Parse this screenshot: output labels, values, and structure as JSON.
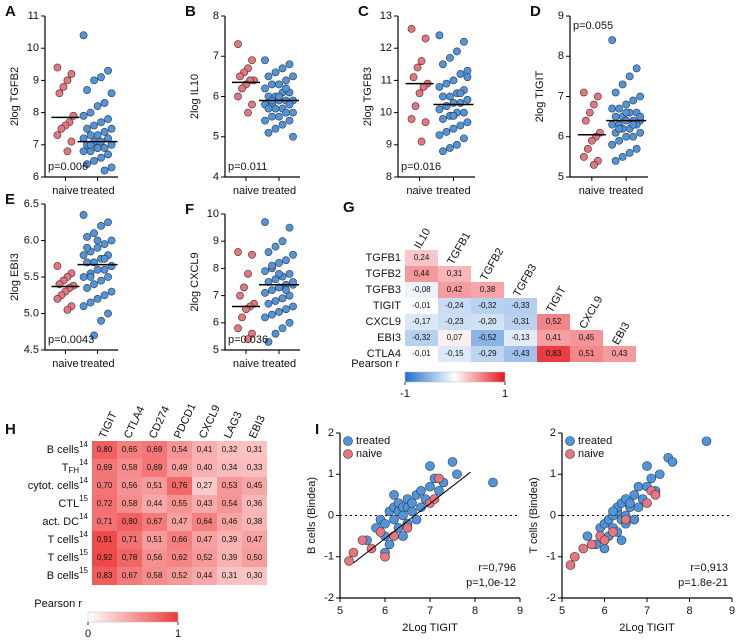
{
  "chart_data": [
    {
      "type": "dot",
      "panel": "A",
      "ylabel": "2log TGFB2",
      "annotation": "p=0.006",
      "annotation_corner": "bottom-left",
      "categories": [
        "naive",
        "treated"
      ],
      "groups": [
        {
          "color": "#e8757d",
          "median": 7.85,
          "values": [
            9.4,
            9.2,
            9.0,
            8.8,
            8.6,
            7.9,
            7.7,
            7.6,
            7.5,
            7.3,
            7.1,
            6.8
          ]
        },
        {
          "color": "#4f95de",
          "median": 7.1,
          "values": [
            10.4,
            9.3,
            9.1,
            9.0,
            8.7,
            8.6,
            8.3,
            8.2,
            8.0,
            7.9,
            7.8,
            7.7,
            7.6,
            7.5,
            7.5,
            7.4,
            7.3,
            7.3,
            7.2,
            7.2,
            7.1,
            7.1,
            7.0,
            7.0,
            6.9,
            6.9,
            6.8,
            6.8,
            6.7,
            6.6,
            6.5,
            6.4,
            6.3,
            6.2,
            6.9,
            7.0
          ]
        }
      ],
      "ylim": [
        6,
        11
      ],
      "yticks": [
        6,
        7,
        8,
        9,
        10,
        11
      ]
    },
    {
      "type": "dot",
      "panel": "B",
      "ylabel": "2log IL10",
      "annotation": "p=0.011",
      "annotation_corner": "bottom-left",
      "categories": [
        "naive",
        "treated"
      ],
      "groups": [
        {
          "color": "#e8757d",
          "median": 6.35,
          "values": [
            7.3,
            6.9,
            6.7,
            6.6,
            6.5,
            6.4,
            6.4,
            6.3,
            6.2,
            6.0,
            5.8,
            5.6
          ]
        },
        {
          "color": "#4f95de",
          "median": 5.9,
          "values": [
            6.9,
            6.8,
            6.7,
            6.6,
            6.5,
            6.5,
            6.4,
            6.3,
            6.3,
            6.2,
            6.1,
            6.1,
            6.0,
            6.0,
            5.9,
            5.9,
            5.9,
            5.8,
            5.8,
            5.8,
            5.7,
            5.7,
            5.7,
            5.6,
            5.6,
            5.5,
            5.5,
            5.4,
            5.4,
            5.3,
            5.2,
            5.1,
            5.0,
            6.2,
            6.0,
            5.9
          ]
        }
      ],
      "ylim": [
        4,
        8
      ],
      "yticks": [
        4,
        5,
        6,
        7,
        8
      ]
    },
    {
      "type": "dot",
      "panel": "C",
      "ylabel": "2log TGFB3",
      "annotation": "p=0.016",
      "annotation_corner": "bottom-left",
      "categories": [
        "naive",
        "treated"
      ],
      "groups": [
        {
          "color": "#e8757d",
          "median": 10.9,
          "values": [
            12.6,
            12.3,
            11.6,
            11.4,
            11.1,
            10.9,
            10.8,
            10.6,
            10.2,
            9.8,
            9.7,
            9.1
          ]
        },
        {
          "color": "#4f95de",
          "median": 10.25,
          "values": [
            12.4,
            12.2,
            11.9,
            11.7,
            11.5,
            11.3,
            11.2,
            11.0,
            10.9,
            10.8,
            10.7,
            10.6,
            10.5,
            10.5,
            10.4,
            10.3,
            10.3,
            10.2,
            10.1,
            10.0,
            10.0,
            9.9,
            9.8,
            9.7,
            9.6,
            9.5,
            9.4,
            9.3,
            9.2,
            9.0,
            8.9,
            8.8,
            11.1,
            10.6,
            9.9,
            10.2
          ]
        }
      ],
      "ylim": [
        8,
        13
      ],
      "yticks": [
        8,
        9,
        10,
        11,
        12,
        13
      ]
    },
    {
      "type": "dot",
      "panel": "D",
      "ylabel": "2log TIGIT",
      "annotation": "p=0.055",
      "annotation_corner": "top-left",
      "categories": [
        "naive",
        "treated"
      ],
      "groups": [
        {
          "color": "#e8757d",
          "median": 6.05,
          "values": [
            7.1,
            7.0,
            6.8,
            6.6,
            6.4,
            6.1,
            6.0,
            5.9,
            5.7,
            5.5,
            5.4,
            5.3
          ]
        },
        {
          "color": "#4f95de",
          "median": 6.4,
          "values": [
            8.4,
            7.7,
            7.5,
            7.3,
            7.1,
            7.0,
            6.9,
            6.8,
            6.7,
            6.7,
            6.6,
            6.6,
            6.5,
            6.5,
            6.4,
            6.4,
            6.4,
            6.3,
            6.3,
            6.3,
            6.2,
            6.2,
            6.1,
            6.1,
            6.0,
            6.0,
            5.9,
            5.8,
            5.7,
            5.6,
            5.5,
            5.4,
            6.5,
            6.3,
            6.6,
            6.2
          ]
        }
      ],
      "ylim": [
        5,
        9
      ],
      "yticks": [
        5,
        6,
        7,
        8,
        9
      ]
    },
    {
      "type": "dot",
      "panel": "E",
      "ylabel": "2log EBI3",
      "annotation": "p=0.0043",
      "annotation_corner": "bottom-left",
      "categories": [
        "naive",
        "treated"
      ],
      "groups": [
        {
          "color": "#e8757d",
          "median": 5.37,
          "values": [
            5.65,
            5.55,
            5.5,
            5.45,
            5.4,
            5.38,
            5.35,
            5.3,
            5.25,
            5.2,
            5.1,
            5.05
          ]
        },
        {
          "color": "#4f95de",
          "median": 5.67,
          "values": [
            6.35,
            6.25,
            6.2,
            6.1,
            6.05,
            6.0,
            5.95,
            5.9,
            5.85,
            5.8,
            5.8,
            5.75,
            5.7,
            5.7,
            5.65,
            5.6,
            5.6,
            5.55,
            5.5,
            5.5,
            5.45,
            5.4,
            5.35,
            5.3,
            5.25,
            5.2,
            5.15,
            5.1,
            5.0,
            4.9,
            4.7,
            5.9,
            5.65,
            5.75,
            6.0,
            5.5
          ]
        }
      ],
      "ylim": [
        4.5,
        6.5
      ],
      "yticks": [
        4.5,
        {
          "value": 5,
          "label": "5.0"
        },
        5.5,
        {
          "value": 6,
          "label": "6.0"
        },
        6.5
      ]
    },
    {
      "type": "dot",
      "panel": "F",
      "ylabel": "2log CXCL9",
      "annotation": "p=0.036",
      "annotation_corner": "bottom-left",
      "categories": [
        "naive",
        "treated"
      ],
      "groups": [
        {
          "color": "#e8757d",
          "median": 6.6,
          "values": [
            8.6,
            8.5,
            7.8,
            7.3,
            7.0,
            6.7,
            6.6,
            6.5,
            6.2,
            5.8,
            5.6,
            5.4
          ]
        },
        {
          "color": "#4f95de",
          "median": 7.4,
          "values": [
            9.7,
            9.5,
            9.0,
            8.8,
            8.6,
            8.5,
            8.3,
            8.2,
            8.0,
            7.9,
            7.8,
            7.7,
            7.6,
            7.5,
            7.4,
            7.4,
            7.3,
            7.2,
            7.1,
            7.0,
            6.9,
            6.8,
            6.7,
            6.6,
            6.5,
            6.4,
            6.3,
            6.2,
            6.0,
            5.8,
            5.6,
            5.3,
            7.5,
            7.2,
            7.8,
            8.1
          ]
        }
      ],
      "ylim": [
        5,
        10
      ],
      "yticks": [
        5,
        6,
        7,
        8,
        9,
        10
      ]
    },
    {
      "type": "triangle-heatmap",
      "panel": "G",
      "rows": [
        "TGFB1",
        "TGFB2",
        "TGFB3",
        "TIGIT",
        "CXCL9",
        "EBI3",
        "CTLA4"
      ],
      "columns": [
        "IL10",
        "TGFB1",
        "TGFB2",
        "TGFB3",
        "TIGIT",
        "CXCL9",
        "EBI3"
      ],
      "values": [
        [
          0.24
        ],
        [
          0.44,
          0.31
        ],
        [
          -0.08,
          0.42,
          0.38
        ],
        [
          -0.01,
          -0.24,
          -0.32,
          -0.33
        ],
        [
          -0.17,
          -0.23,
          -0.2,
          -0.31,
          0.52
        ],
        [
          -0.32,
          0.07,
          -0.52,
          -0.13,
          0.41,
          0.45
        ],
        [
          -0.01,
          -0.15,
          -0.29,
          -0.43,
          0.83,
          0.51,
          0.43
        ]
      ],
      "value_labels": [
        [
          "0,24"
        ],
        [
          "0,44",
          "0,31"
        ],
        [
          "-0,08",
          "0,42",
          "0,38"
        ],
        [
          "-0,01",
          "-0,24",
          "-0,32",
          "-0,33"
        ],
        [
          "-0,17",
          "-0,23",
          "-0,20",
          "-0,31",
          "0,52"
        ],
        [
          "-0,32",
          "0,07",
          "-0,52",
          "-0,13",
          "0,41",
          "0,45"
        ],
        [
          "-0,01",
          "-0,15",
          "-0,29",
          "-0,43",
          "0,83",
          "0,51",
          "0,43"
        ]
      ],
      "colors": [
        "#1f6fcf",
        "#ffffff",
        "#e8141c"
      ],
      "colorbar": {
        "label": "Pearson r",
        "lim": [
          -1,
          1
        ],
        "ticks": [
          -1,
          1
        ]
      }
    },
    {
      "type": "heatmap",
      "panel": "H",
      "rows": [
        {
          "label": "B cells",
          "sup": "14"
        },
        {
          "label": "T",
          "sub": "FH",
          "sup": "14"
        },
        {
          "label": "cytot. cells",
          "sup": "14"
        },
        {
          "label": "CTL",
          "sup": "15"
        },
        {
          "label": "act. DC",
          "sup": "14"
        },
        {
          "label": "T cells",
          "sup": "14"
        },
        {
          "label": "T cells",
          "sup": "15"
        },
        {
          "label": "B cells",
          "sup": "15"
        }
      ],
      "columns": [
        "TIGIT",
        "CTLA4",
        "CD274",
        "PDCD1",
        "CXCL9",
        "LAG3",
        "EBI3"
      ],
      "values": [
        [
          0.8,
          0.65,
          0.69,
          0.54,
          0.41,
          0.32,
          0.31
        ],
        [
          0.69,
          0.58,
          0.69,
          0.49,
          0.4,
          0.34,
          0.33
        ],
        [
          0.7,
          0.56,
          0.51,
          0.76,
          0.27,
          0.53,
          0.45
        ],
        [
          0.72,
          0.58,
          0.44,
          0.55,
          0.43,
          0.54,
          0.36
        ],
        [
          0.71,
          0.8,
          0.67,
          0.47,
          0.64,
          0.46,
          0.38
        ],
        [
          0.91,
          0.71,
          0.51,
          0.66,
          0.47,
          0.39,
          0.47
        ],
        [
          0.92,
          0.78,
          0.56,
          0.62,
          0.52,
          0.39,
          0.5
        ],
        [
          0.83,
          0.67,
          0.58,
          0.52,
          0.44,
          0.31,
          0.3
        ]
      ],
      "value_labels": [
        [
          "0,80",
          "0,65",
          "0,69",
          "0,54",
          "0,41",
          "0,32",
          "0,31"
        ],
        [
          "0,69",
          "0,58",
          "0,69",
          "0,49",
          "0,40",
          "0,34",
          "0,33"
        ],
        [
          "0,70",
          "0,56",
          "0,51",
          "0,76",
          "0,27",
          "0,53",
          "0,45"
        ],
        [
          "0,72",
          "0,58",
          "0,44",
          "0,55",
          "0,43",
          "0,54",
          "0,36"
        ],
        [
          "0,71",
          "0,80",
          "0,67",
          "0,47",
          "0,64",
          "0,46",
          "0,38"
        ],
        [
          "0,91",
          "0,71",
          "0,51",
          "0,66",
          "0,47",
          "0,39",
          "0,47"
        ],
        [
          "0,92",
          "0,78",
          "0,56",
          "0,62",
          "0,52",
          "0,39",
          "0,50"
        ],
        [
          "0,83",
          "0,67",
          "0,58",
          "0,52",
          "0,44",
          "0,31",
          "0,30"
        ]
      ],
      "colors": [
        "#ffffff",
        "#ee3a3a"
      ],
      "colorbar": {
        "label": "Pearson r",
        "lim": [
          0,
          1
        ],
        "ticks": [
          0,
          1
        ]
      }
    },
    {
      "type": "scatter",
      "panel": "I",
      "xlabel": "2Log TIGIT",
      "ylabel": "B cells (Bindea)",
      "legend": "top-left",
      "annotations": [
        "r=0,796",
        "p=1,0e-12"
      ],
      "series": [
        {
          "name": "treated",
          "color": "#4f95de",
          "x": [
            5.6,
            5.8,
            5.9,
            6.0,
            6.0,
            6.1,
            6.1,
            6.2,
            6.2,
            6.3,
            6.3,
            6.3,
            6.4,
            6.4,
            6.4,
            6.5,
            6.5,
            6.5,
            6.6,
            6.6,
            6.7,
            6.7,
            6.8,
            6.8,
            6.9,
            7.0,
            7.0,
            7.1,
            7.2,
            7.3,
            7.5,
            7.6,
            8.4,
            6.0,
            6.2
          ],
          "y": [
            -0.6,
            -0.3,
            -0.1,
            -0.5,
            -0.2,
            0.1,
            -0.7,
            -0.1,
            0.2,
            0.1,
            -0.3,
            0.3,
            0.0,
            0.2,
            -0.5,
            0.2,
            0.4,
            -0.2,
            0.1,
            0.3,
            0.5,
            -0.1,
            0.6,
            0.2,
            0.4,
            0.7,
            1.2,
            0.9,
            0.6,
            0.8,
            1.3,
            1.0,
            0.8,
            -0.9,
            0.5
          ]
        },
        {
          "name": "naive",
          "color": "#e8757d",
          "x": [
            5.2,
            5.3,
            5.5,
            5.7,
            5.9,
            6.0,
            6.2,
            6.5,
            7.0,
            7.1,
            7.2
          ],
          "y": [
            -1.1,
            -0.9,
            -0.6,
            -0.8,
            -0.4,
            -1.0,
            -0.5,
            -0.3,
            0.3,
            0.4,
            0.9
          ]
        }
      ],
      "fit": {
        "x": [
          5.3,
          7.9
        ],
        "y": [
          -1.15,
          1.05
        ]
      },
      "reference_line": 0,
      "xlim": [
        5,
        9
      ],
      "xticks": [
        5,
        6,
        7,
        8,
        9
      ],
      "ylim": [
        -2,
        2
      ],
      "yticks": [
        -2,
        -1,
        0,
        1,
        2
      ]
    },
    {
      "type": "scatter",
      "xlabel": "2Log TIGIT",
      "ylabel": "T cells (Bindea)",
      "legend": "top-left",
      "annotations": [
        "r=0,913",
        "p=1.8e-21"
      ],
      "series": [
        {
          "name": "treated",
          "color": "#4f95de",
          "x": [
            5.6,
            5.8,
            5.9,
            6.0,
            6.0,
            6.1,
            6.1,
            6.2,
            6.2,
            6.3,
            6.3,
            6.3,
            6.4,
            6.4,
            6.4,
            6.5,
            6.5,
            6.5,
            6.6,
            6.6,
            6.7,
            6.7,
            6.8,
            6.8,
            6.9,
            7.0,
            7.0,
            7.1,
            7.2,
            7.3,
            7.5,
            7.6,
            8.4,
            6.0,
            6.2
          ],
          "y": [
            -0.5,
            -0.7,
            -0.3,
            -0.6,
            -0.2,
            -0.1,
            -0.5,
            0.0,
            -0.3,
            0.1,
            -0.4,
            0.2,
            -0.1,
            0.3,
            -0.6,
            0.0,
            0.4,
            -0.2,
            0.2,
            0.3,
            0.5,
            -0.1,
            0.7,
            0.2,
            0.4,
            0.7,
            1.2,
            0.9,
            0.6,
            1.0,
            1.4,
            1.3,
            1.8,
            -0.8,
            0.1
          ]
        },
        {
          "name": "naive",
          "color": "#e8757d",
          "x": [
            5.2,
            5.3,
            5.5,
            5.7,
            5.9,
            6.0,
            6.2,
            6.5,
            7.0,
            7.1,
            7.2
          ],
          "y": [
            -1.2,
            -1.0,
            -0.8,
            -0.7,
            -0.5,
            -0.6,
            -0.4,
            -0.1,
            0.3,
            0.6,
            0.5
          ]
        }
      ],
      "reference_line": 0,
      "xlim": [
        5,
        9
      ],
      "xticks": [
        5,
        6,
        7,
        8,
        9
      ],
      "ylim": [
        -2,
        2
      ],
      "yticks": [
        -2,
        -1,
        0,
        1,
        2
      ]
    }
  ]
}
